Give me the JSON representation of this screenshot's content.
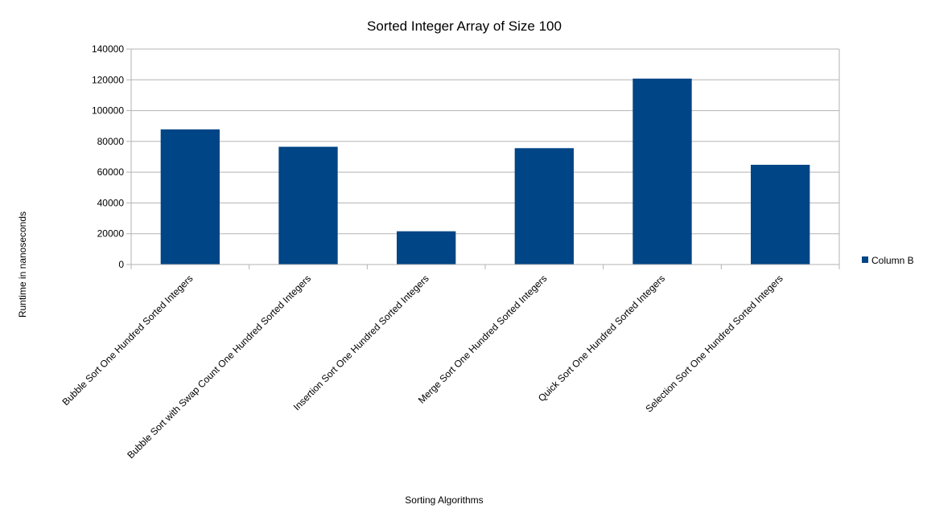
{
  "chart_data": {
    "type": "bar",
    "title": "Sorted Integer Array of Size 100",
    "xlabel": "Sorting Algorithms",
    "ylabel": "Runtime in nanoseconds",
    "categories": [
      "Bubble Sort One Hundred Sorted Integers",
      "Bubble Sort with Swap Count One Hundred Sorted Integers",
      "Insertion Sort One Hundred Sorted Integers",
      "Merge Sort One Hundred Sorted Integers",
      "Quick Sort One Hundred Sorted Integers",
      "Selection Sort One Hundred Sorted Integers"
    ],
    "series": [
      {
        "name": "Column B",
        "values": [
          87800,
          76500,
          21600,
          75600,
          120800,
          64800
        ],
        "color": "#004586"
      }
    ],
    "ylim": [
      0,
      140000
    ],
    "yticks": [
      "0",
      "20000",
      "40000",
      "60000",
      "80000",
      "100000",
      "120000",
      "140000"
    ],
    "grid": true,
    "legend_position": "right"
  }
}
